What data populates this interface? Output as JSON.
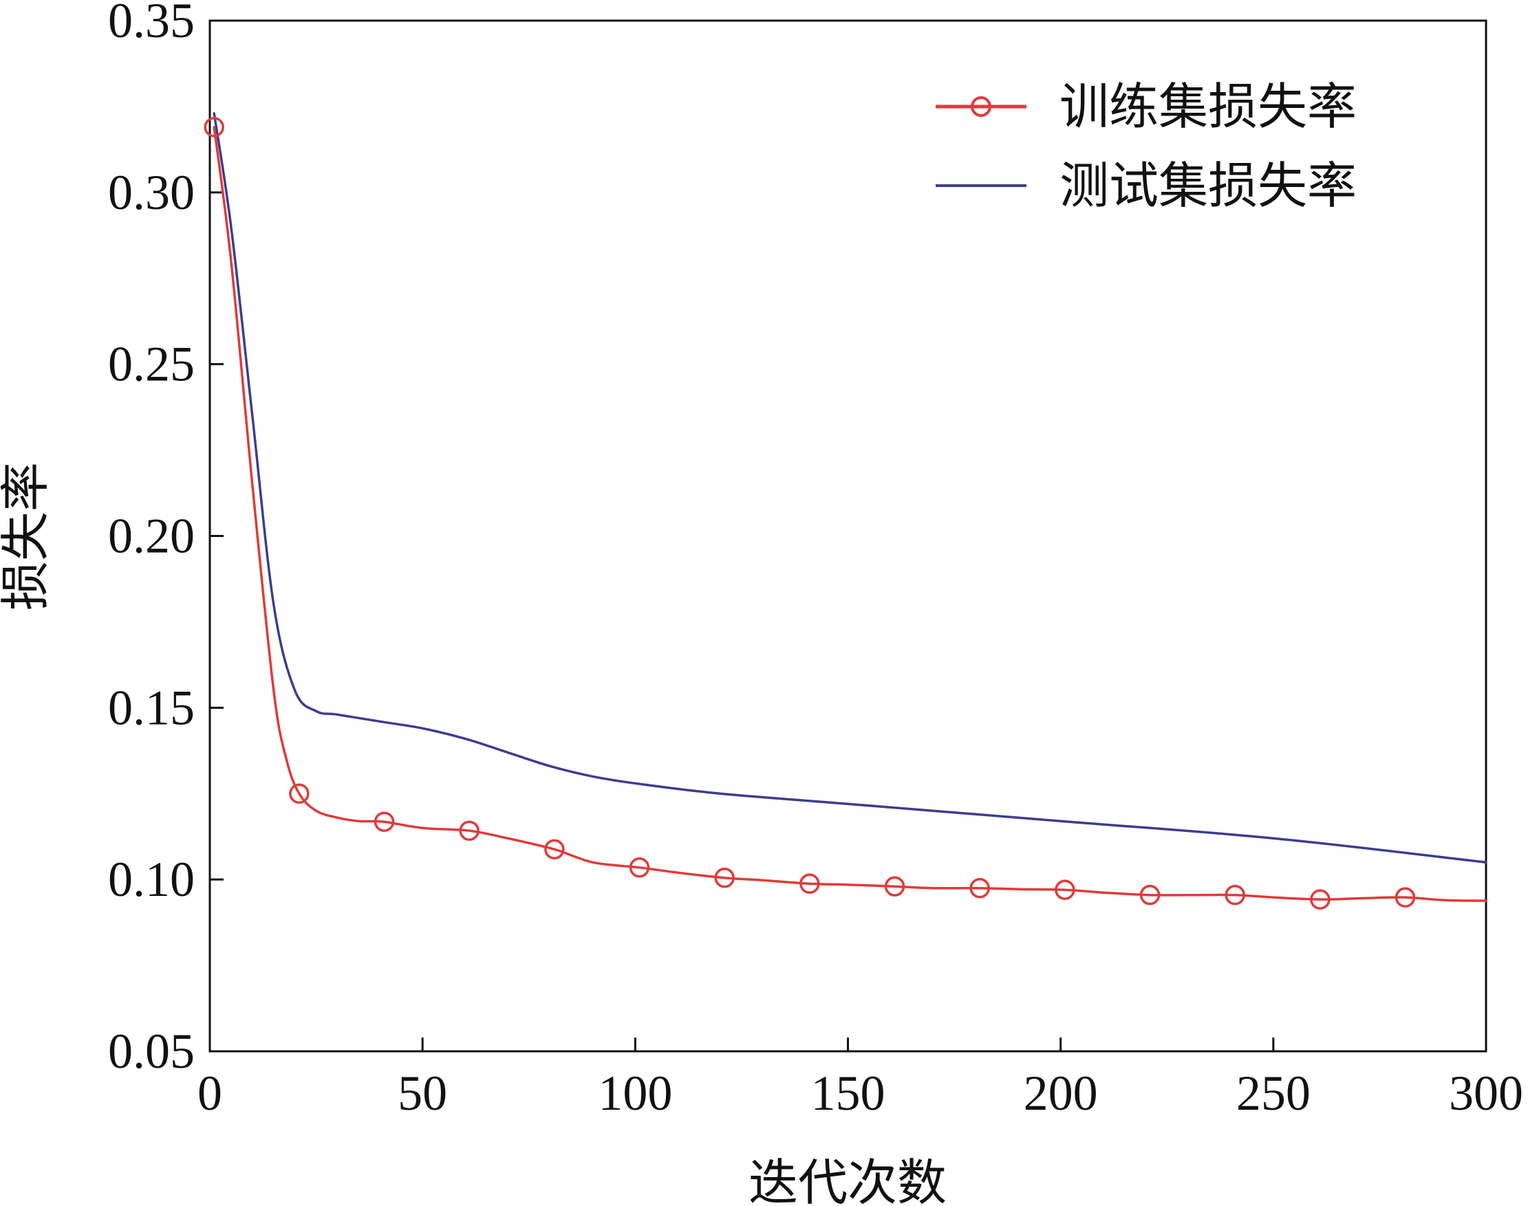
{
  "chart_data": {
    "type": "line",
    "title": "",
    "xlabel": "迭代次数",
    "ylabel": "损失率",
    "xlim": [
      0,
      300
    ],
    "ylim": [
      0.05,
      0.35
    ],
    "xticks": [
      "0",
      "50",
      "100",
      "150",
      "200",
      "250",
      "300"
    ],
    "yticks": [
      "0.05",
      "0.10",
      "0.15",
      "0.20",
      "0.25",
      "0.30",
      "0.35"
    ],
    "grid": false,
    "legend_position": "top-right",
    "series": [
      {
        "name": "训练集损失率",
        "color": "#e03a3a",
        "marker": "circle",
        "x": [
          1,
          5,
          10,
          15,
          18,
          21,
          25,
          30,
          35,
          41,
          50,
          61,
          70,
          81,
          90,
          101,
          110,
          121,
          130,
          141,
          150,
          161,
          170,
          181,
          190,
          201,
          210,
          221,
          230,
          241,
          250,
          261,
          270,
          281,
          290,
          300
        ],
        "y": [
          0.319,
          0.28,
          0.215,
          0.155,
          0.135,
          0.125,
          0.12,
          0.118,
          0.117,
          0.1168,
          0.115,
          0.1142,
          0.112,
          0.1088,
          0.105,
          0.1035,
          0.102,
          0.1005,
          0.0998,
          0.0988,
          0.0985,
          0.098,
          0.0975,
          0.0975,
          0.0972,
          0.097,
          0.0962,
          0.0955,
          0.0955,
          0.0955,
          0.0948,
          0.0942,
          0.0945,
          0.0948,
          0.094,
          0.0938
        ],
        "marker_x": [
          1,
          21,
          41,
          61,
          81,
          101,
          121,
          141,
          161,
          181,
          201,
          221,
          241,
          261,
          281
        ],
        "marker_y": [
          0.319,
          0.125,
          0.1168,
          0.1142,
          0.1088,
          0.1035,
          0.1005,
          0.0988,
          0.098,
          0.0975,
          0.097,
          0.0955,
          0.0955,
          0.0942,
          0.0948
        ]
      },
      {
        "name": "测试集损失率",
        "color": "#3c3d8e",
        "marker": "none",
        "x": [
          1,
          5,
          10,
          15,
          20,
          25,
          30,
          40,
          50,
          60,
          70,
          80,
          90,
          100,
          120,
          150,
          200,
          250,
          300
        ],
        "y": [
          0.323,
          0.29,
          0.235,
          0.18,
          0.155,
          0.149,
          0.148,
          0.146,
          0.144,
          0.141,
          0.137,
          0.133,
          0.13,
          0.128,
          0.125,
          0.122,
          0.117,
          0.112,
          0.105
        ]
      }
    ]
  }
}
